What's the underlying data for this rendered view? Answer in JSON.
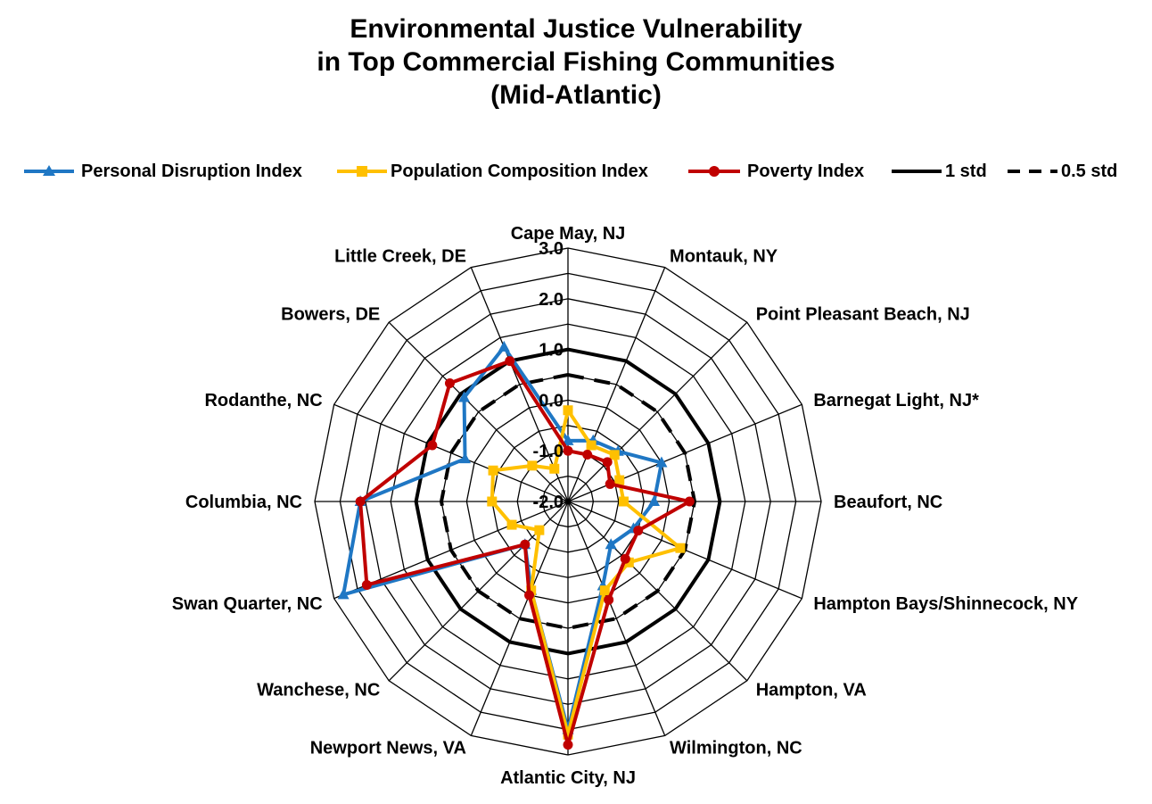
{
  "chart_data": {
    "type": "radar",
    "title_lines": [
      "Environmental Justice Vulnerability",
      "in Top Commercial Fishing Communities",
      "(Mid-Atlantic)"
    ],
    "categories": [
      "Cape May, NJ",
      "Montauk, NY",
      "Point Pleasant Beach, NJ",
      "Barnegat Light, NJ*",
      "Beaufort, NC",
      "Hampton Bays/Shinnecock, NY",
      "Hampton, VA",
      "Wilmington, NC",
      "Atlantic City, NJ",
      "Newport News, VA",
      "Wanchese, NC",
      "Swan Quarter, NC",
      "Columbia, NC",
      "Rodanthe, NC",
      "Bowers, DE",
      "Little Creek, DE"
    ],
    "r_ticks": [
      "3.0",
      "2.0",
      "1.0",
      "0.0",
      "-1.0",
      "-2.0"
    ],
    "r_range": [
      -2,
      3
    ],
    "series": [
      {
        "name": "Personal Disruption Index",
        "color": "#1f77c4",
        "marker": "triangle",
        "values": [
          -0.8,
          -0.7,
          -0.6,
          0.0,
          -0.3,
          -0.6,
          -0.8,
          -0.2,
          2.5,
          -0.1,
          -0.8,
          2.8,
          2.1,
          0.2,
          0.9,
          1.3
        ]
      },
      {
        "name": "Population Composition Index",
        "color": "#ffc000",
        "marker": "square",
        "values": [
          -0.2,
          -0.8,
          -0.7,
          -0.9,
          -0.9,
          0.4,
          -0.3,
          -0.1,
          2.6,
          -0.1,
          -1.2,
          -0.8,
          -0.5,
          -0.4,
          -1.0,
          -1.3
        ]
      },
      {
        "name": "Poverty Index",
        "color": "#c00000",
        "marker": "circle",
        "values": [
          -1.0,
          -1.0,
          -0.9,
          -1.1,
          0.4,
          -0.5,
          -0.4,
          0.1,
          2.8,
          0.0,
          -0.8,
          2.3,
          2.1,
          0.9,
          1.3,
          1.0
        ]
      }
    ],
    "reference_lines": [
      {
        "name": "1 std",
        "value": 1.0,
        "style": "solid",
        "color": "#000000"
      },
      {
        "name": "0.5 std",
        "value": 0.5,
        "style": "dashed",
        "color": "#000000"
      }
    ],
    "legend_position": "top",
    "grid": true
  }
}
